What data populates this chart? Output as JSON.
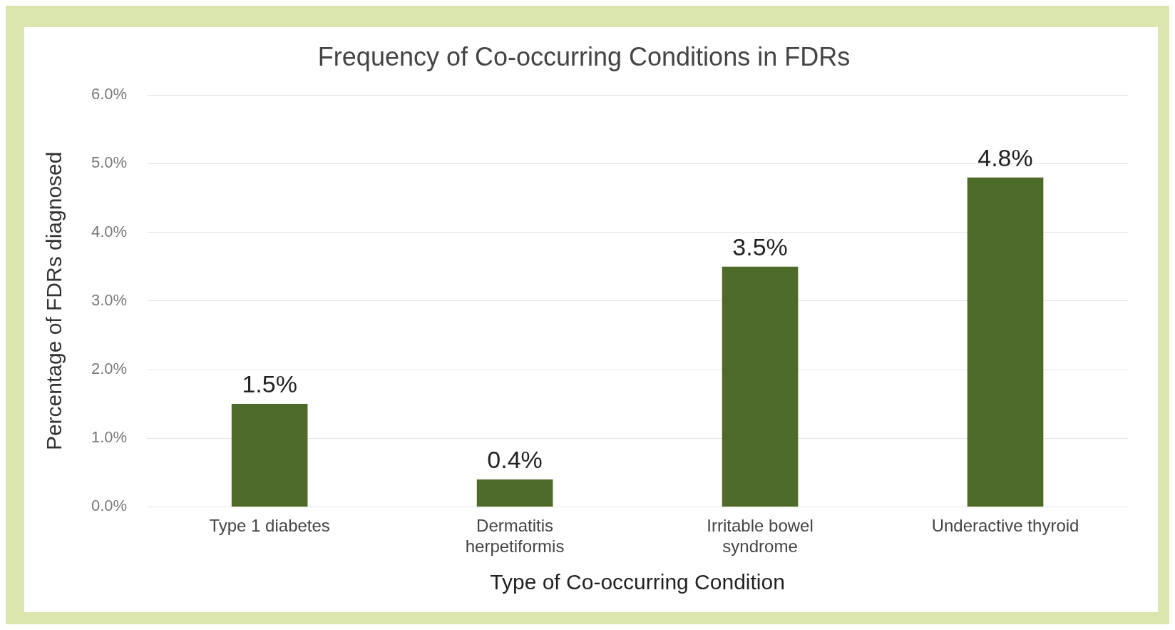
{
  "chart_data": {
    "type": "bar",
    "title": "Frequency of Co-occurring Conditions in FDRs",
    "xlabel": "Type of Co-occurring Condition",
    "ylabel": "Percentage of FDRs diagnosed",
    "categories": [
      "Type 1 diabetes",
      "Dermatitis herpetiformis",
      "Irritable bowel syndrome",
      "Underactive thyroid"
    ],
    "values": [
      1.5,
      0.4,
      3.5,
      4.8
    ],
    "value_labels": [
      "1.5%",
      "0.4%",
      "3.5%",
      "4.8%"
    ],
    "color": "#4e6a28",
    "ylim": [
      0,
      6
    ],
    "yticks": [
      {
        "value": 0,
        "label": "0.0%"
      },
      {
        "value": 1,
        "label": "1.0%"
      },
      {
        "value": 2,
        "label": "2.0%"
      },
      {
        "value": 3,
        "label": "3.0%"
      },
      {
        "value": 4,
        "label": "4.0%"
      },
      {
        "value": 5,
        "label": "5.0%"
      },
      {
        "value": 6,
        "label": "6.0%"
      }
    ],
    "grid": "y",
    "legend": false
  }
}
